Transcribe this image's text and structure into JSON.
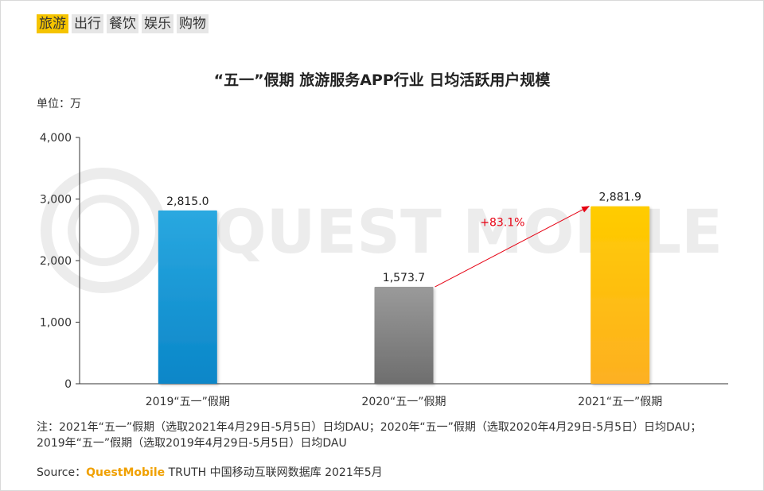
{
  "tabs": [
    {
      "label": "旅游",
      "active": true
    },
    {
      "label": "出行",
      "active": false
    },
    {
      "label": "餐饮",
      "active": false
    },
    {
      "label": "娱乐",
      "active": false
    },
    {
      "label": "购物",
      "active": false
    }
  ],
  "unit_label": "单位：万",
  "note": "注：2021年“五一”假期（选取2021年4月29日-5月5日）日均DAU；2020年“五一”假期（选取2020年4月29日-5月5日）日均DAU；2019年“五一”假期（选取2019年4月29日-5月5日）日均DAU",
  "source": {
    "prefix": "Source：",
    "brand": "QuestMobile",
    "rest": " TRUTH 中国移动互联网数据库 2021年5月"
  },
  "watermark": "QUEST MOBILE",
  "colors": {
    "accent": "#f5c400",
    "bar_2019": "#1a9bd7",
    "bar_2020": "#8a8a8a",
    "bar_2021": "#ffc20e",
    "arrow": "#e60012"
  },
  "chart_data": {
    "type": "bar",
    "title": "“五一”假期 旅游服务APP行业 日均活跃用户规模",
    "categories": [
      "2019“五一”假期",
      "2020“五一”假期",
      "2021“五一”假期"
    ],
    "values": [
      2815.0,
      1573.7,
      2881.9
    ],
    "value_labels": [
      "2,815.0",
      "1,573.7",
      "2,881.9"
    ],
    "ylim": [
      0,
      4000
    ],
    "yticks": [
      "0",
      "1,000",
      "2,000",
      "3,000",
      "4,000"
    ],
    "ytick_values": [
      0,
      1000,
      2000,
      3000,
      4000
    ],
    "annotation": {
      "text": "+83.1%",
      "from_category": 1,
      "to_category": 2
    },
    "grid": false
  }
}
